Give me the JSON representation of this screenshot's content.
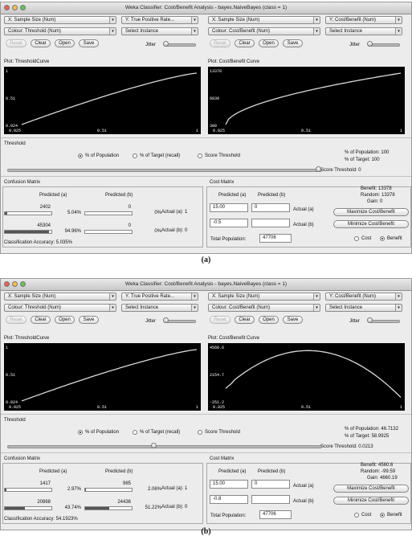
{
  "panels": [
    {
      "title": "Weka Classifier: Cost/Benefit Analysis - bayes.NaiveBayes  (class = 1)",
      "left": {
        "x_select": "X: Sample Size (Num)",
        "y_select": "Y: True Positive Rate...",
        "colour_select": "Colour: Threshold (Num)",
        "instance_select": "Select Instance",
        "reset": "Reset",
        "clear": "Clear",
        "open": "Open",
        "save": "Save",
        "jitter": "Jitter",
        "jitter_level": 0.0,
        "plot_title": "Plot: ThresholdCurve",
        "y_ticks": [
          "1",
          "0.51",
          "0.024"
        ],
        "x_ticks": [
          "0.025",
          "0.51",
          "1"
        ]
      },
      "right": {
        "x_select": "X: Sample Size (Num)",
        "y_select": "Y: Cost/Benefit (Num)",
        "colour_select": "Colour: Cost/Benefit (Num)",
        "instance_select": "Select Instance",
        "reset": "Reset",
        "clear": "Clear",
        "open": "Open",
        "save": "Save",
        "jitter": "Jitter",
        "jitter_level": 0.0,
        "plot_title": "Plot: Cost/Benefit Curve",
        "y_ticks": [
          "13378",
          "6839",
          "300"
        ],
        "x_ticks": [
          "0.025",
          "0.51",
          "1"
        ]
      },
      "threshold": {
        "title": "Threshold",
        "opt_population": "% of Population",
        "opt_target": "% of Target (recall)",
        "opt_score": "Score Threshold",
        "slider_level": 1.0,
        "pop_line": "% of Population: 100",
        "target_line": "% of Target: 100",
        "score_line": "Score Threshold: 0"
      },
      "confusion": {
        "title": "Confusion Matrix",
        "pred_a": "Predicted (a)",
        "pred_b": "Predicted (b)",
        "r1c1": "2402",
        "r1c1p": "5.04%",
        "r1c1f": 0.0504,
        "r1c2": "0",
        "r1c2p": "0%",
        "r1c2f": 0.0,
        "r2c1": "45304",
        "r2c1p": "94.96%",
        "r2c1f": 0.9496,
        "r2c2": "0",
        "r2c2p": "0%",
        "r2c2f": 0.0,
        "actual_a": "Actual (a): 1",
        "actual_b": "Actual (b): 0",
        "accuracy": "Classification Accuracy:  5.035%"
      },
      "cost": {
        "title": "Cost Matrix",
        "pred_a": "Predicted (a)",
        "pred_b": "Predicted (b)",
        "c11": "15.00",
        "c12": "0",
        "c21": "-0.5",
        "c22": "",
        "actual_a": "Actual (a)",
        "actual_b": "Actual (b)",
        "total_label": "Total Population:",
        "total_value": "47706",
        "benefit": "Benefit: 13378",
        "random": "Random: 13378",
        "gain": "Gain: 0",
        "maximize": "Maximize Cost/Benefit",
        "minimize": "Minimize Cost/Benefit",
        "cost_opt": "Cost",
        "benefit_opt": "Benefit"
      },
      "caption": "(a)"
    },
    {
      "title": "Weka Classifier: Cost/Benefit Analysis - bayes.NaiveBayes  (class = 1)",
      "left": {
        "x_select": "X: Sample Size (Num)",
        "y_select": "Y: True Positive Rate...",
        "colour_select": "Colour: Threshold (Num)",
        "instance_select": "Select Instance",
        "reset": "Reset",
        "clear": "Clear",
        "open": "Open",
        "save": "Save",
        "jitter": "Jitter",
        "jitter_level": 0.0,
        "plot_title": "Plot: ThresholdCurve",
        "y_ticks": [
          "1",
          "0.51",
          "0.024"
        ],
        "x_ticks": [
          "0.025",
          "0.51",
          "1"
        ]
      },
      "right": {
        "x_select": "X: Sample Size (Num)",
        "y_select": "Y: Cost/Benefit (Num)",
        "colour_select": "Colour: Cost/Benefit (Num)",
        "instance_select": "Select Instance",
        "reset": "Reset",
        "clear": "Clear",
        "open": "Open",
        "save": "Save",
        "jitter": "Jitter",
        "jitter_level": 0.0,
        "plot_title": "Plot: Cost/Benefit Curve",
        "y_ticks": [
          "4560.6",
          "2154.7",
          "-251.2"
        ],
        "x_ticks": [
          "0.025",
          "0.51",
          "1"
        ]
      },
      "threshold": {
        "title": "Threshold",
        "opt_population": "% of Population",
        "opt_target": "% of Target (recall)",
        "opt_score": "Score Threshold",
        "slider_level": 0.467,
        "pop_line": "% of Population: 46.7132",
        "target_line": "% of Target: 58.9925",
        "score_line": "Score Threshold: 0.0213"
      },
      "confusion": {
        "title": "Confusion Matrix",
        "pred_a": "Predicted (a)",
        "pred_b": "Predicted (b)",
        "r1c1": "1417",
        "r1c1p": "2.97%",
        "r1c1f": 0.0297,
        "r1c2": "985",
        "r1c2p": "2.06%",
        "r1c2f": 0.0206,
        "r2c1": "20868",
        "r2c1p": "43.74%",
        "r2c1f": 0.4374,
        "r2c2": "24436",
        "r2c2p": "51.22%",
        "r2c2f": 0.5122,
        "actual_a": "Actual (a): 1",
        "actual_b": "Actual (b): 0",
        "accuracy": "Classification Accuracy:  54.1923%"
      },
      "cost": {
        "title": "Cost Matrix",
        "pred_a": "Predicted (a)",
        "pred_b": "Predicted (b)",
        "c11": "15.00",
        "c12": "0",
        "c21": "-0.8",
        "c22": "",
        "actual_a": "Actual (a)",
        "actual_b": "Actual (b)",
        "total_label": "Total Population:",
        "total_value": "47706",
        "benefit": "Benefit: 4560.6",
        "random": "Random: -99.59",
        "gain": "Gain: 4660.19",
        "maximize": "Maximize Cost/Benefit",
        "minimize": "Minimize Cost/Benefit",
        "cost_opt": "Cost",
        "benefit_opt": "Benefit"
      },
      "caption": "(b)"
    }
  ]
}
